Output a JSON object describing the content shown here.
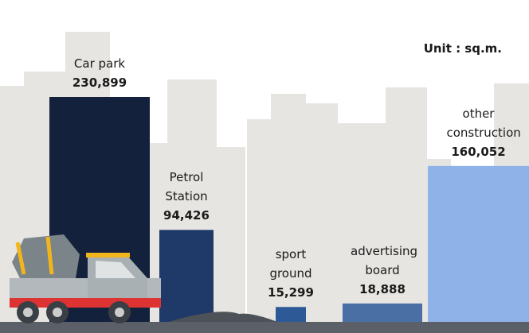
{
  "chart_data": {
    "type": "bar",
    "unit": "Unit : sq.m.",
    "categories": [
      "Car park",
      "Petrol Station",
      "sport ground",
      "advertising board",
      "other construction"
    ],
    "values": [
      230899,
      94426,
      15299,
      18888,
      160052
    ],
    "value_labels": [
      "230,899",
      "94,426",
      "15,299",
      "18,888",
      "160,052"
    ],
    "colors": [
      "#13213d",
      "#1f3a68",
      "#2d5a96",
      "#4a6fa5",
      "#8fb3e8"
    ]
  }
}
